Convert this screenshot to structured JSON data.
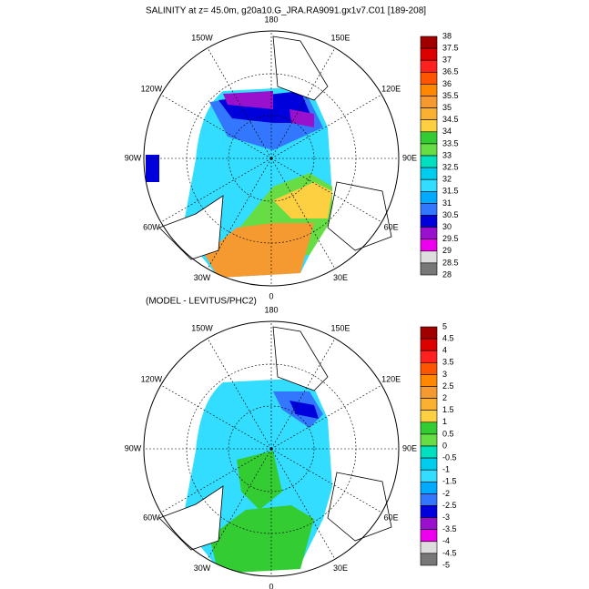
{
  "panels": [
    {
      "title": "SALINITY at z=  45.0m, g20a10.G_JRA.RA9091.gx1v7.C01 [189-208]",
      "lon_labels": [
        "180",
        "150E",
        "120E",
        "90E",
        "60E",
        "30E",
        "0",
        "30W",
        "60W",
        "90W",
        "120W",
        "150W"
      ],
      "colorbar": {
        "levels": [
          38,
          37.5,
          37,
          36.5,
          36,
          35.5,
          35,
          34.5,
          34,
          33.5,
          33,
          32.5,
          32,
          31.5,
          31,
          30.5,
          30,
          29.5,
          29,
          28.5,
          28
        ]
      }
    },
    {
      "title": "(MODEL - LEVITUS/PHC2)",
      "lon_labels": [
        "180",
        "150E",
        "120E",
        "90E",
        "60E",
        "30E",
        "0",
        "30W",
        "60W",
        "90W",
        "120W",
        "150W"
      ],
      "colorbar": {
        "levels": [
          5,
          4.5,
          4,
          3.5,
          3,
          2.5,
          2,
          1.5,
          1,
          0.5,
          0,
          -0.5,
          -1,
          -1.5,
          -2,
          -2.5,
          -3,
          -3.5,
          -4,
          -4.5,
          -5
        ]
      }
    }
  ],
  "colors": [
    "#a00000",
    "#dd0000",
    "#ff2020",
    "#ff5500",
    "#ff8800",
    "#f59a30",
    "#fab030",
    "#fcd040",
    "#33cc33",
    "#66dd44",
    "#00e0c0",
    "#00ccee",
    "#33ddff",
    "#00aaff",
    "#3377ff",
    "#0000dd",
    "#9911cc",
    "#ee00ee",
    "#dddddd",
    "#777777"
  ]
}
